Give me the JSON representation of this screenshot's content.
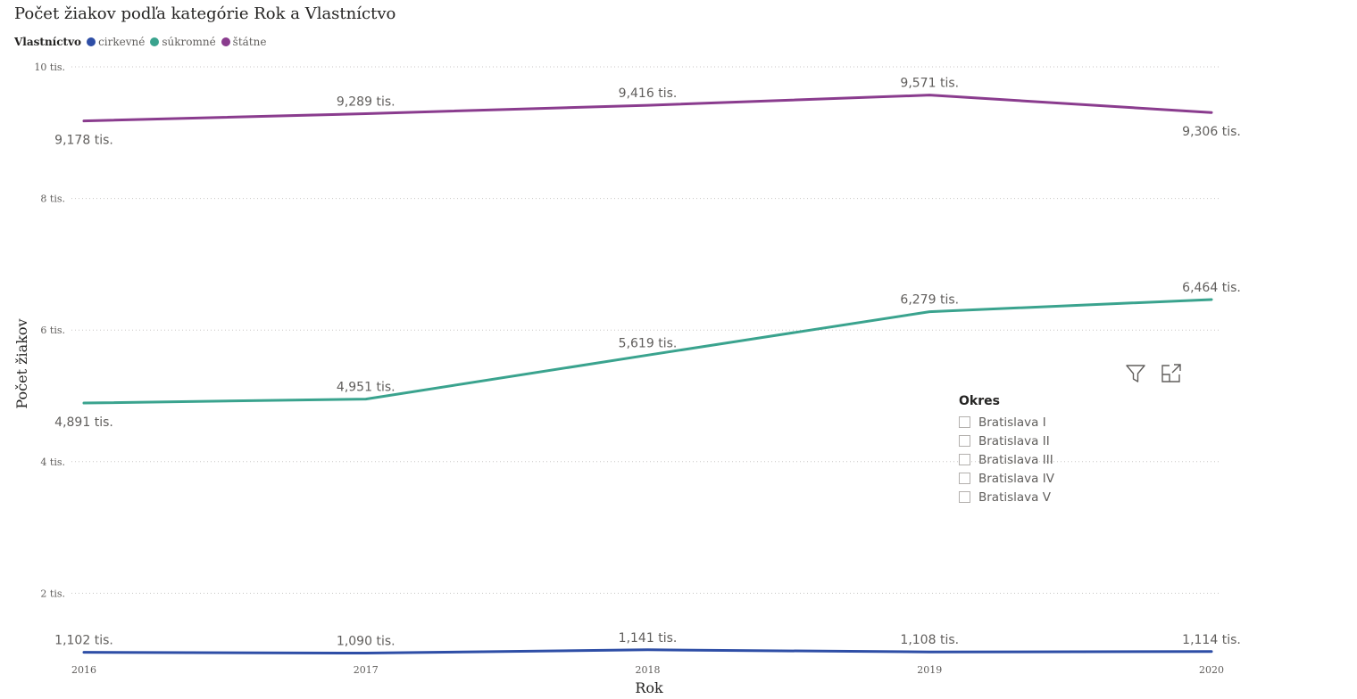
{
  "title": "Počet žiakov podľa kategórie Rok a Vlastníctvo",
  "legend": {
    "title": "Vlastníctvo",
    "items": [
      {
        "label": "cirkevné",
        "color": "#2e4ea6"
      },
      {
        "label": "súkromné",
        "color": "#3aa38e"
      },
      {
        "label": "štátne",
        "color": "#8a3c8e"
      }
    ]
  },
  "slicer": {
    "title": "Okres",
    "items": [
      "Bratislava I",
      "Bratislava II",
      "Bratislava III",
      "Bratislava IV",
      "Bratislava V"
    ]
  },
  "icons": {
    "filter": "filter-icon",
    "expand": "focus-mode-icon"
  },
  "chart_data": {
    "type": "line",
    "title": "Počet žiakov podľa kategórie Rok a Vlastníctvo",
    "xlabel": "Rok",
    "ylabel": "Počet žiakov",
    "x": [
      "2016",
      "2017",
      "2018",
      "2019",
      "2020"
    ],
    "ylim": [
      0,
      10000
    ],
    "yticks": [
      {
        "value": 2000,
        "label": "2 tis."
      },
      {
        "value": 4000,
        "label": "4 tis."
      },
      {
        "value": 6000,
        "label": "6 tis."
      },
      {
        "value": 8000,
        "label": "8 tis."
      },
      {
        "value": 10000,
        "label": "10 tis."
      }
    ],
    "grid": true,
    "legend_position": "top-left",
    "series": [
      {
        "name": "štátne",
        "color": "#8a3c8e",
        "values": [
          9178,
          9289,
          9416,
          9571,
          9306
        ],
        "labels": [
          "9,178 tis.",
          "9,289 tis.",
          "9,416 tis.",
          "9,571 tis.",
          "9,306 tis."
        ],
        "label_pos": [
          "below",
          "above",
          "above",
          "above",
          "below"
        ]
      },
      {
        "name": "súkromné",
        "color": "#3aa38e",
        "values": [
          4891,
          4951,
          5619,
          6279,
          6464
        ],
        "labels": [
          "4,891 tis.",
          "4,951 tis.",
          "5,619 tis.",
          "6,279 tis.",
          "6,464 tis."
        ],
        "label_pos": [
          "below",
          "above",
          "above",
          "above",
          "above"
        ]
      },
      {
        "name": "cirkevné",
        "color": "#2e4ea6",
        "values": [
          1102,
          1090,
          1141,
          1108,
          1114
        ],
        "labels": [
          "1,102 tis.",
          "1,090 tis.",
          "1,141 tis.",
          "1,108 tis.",
          "1,114 tis."
        ],
        "label_pos": [
          "above",
          "above",
          "above",
          "above",
          "above"
        ]
      }
    ]
  }
}
